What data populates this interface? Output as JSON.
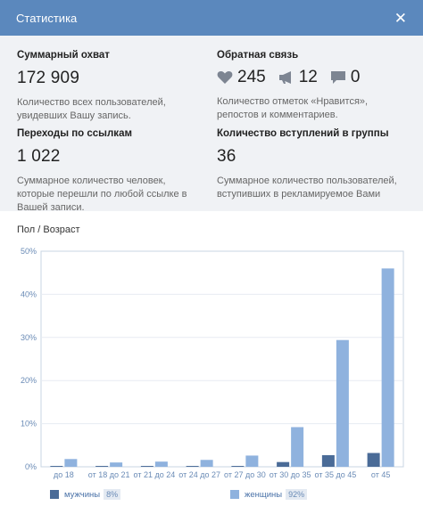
{
  "header": {
    "title": "Статистика",
    "close_symbol": "✕"
  },
  "stats": {
    "reach": {
      "title": "Суммарный охват",
      "value": "172 909",
      "description": "Количество всех пользователей, увидевших Вашу запись."
    },
    "feedback": {
      "title": "Обратная связь",
      "likes": "245",
      "reposts": "12",
      "comments": "0",
      "description": "Количество отметок «Нравится», репостов и комментариев."
    },
    "clicks": {
      "title": "Переходы по ссылкам",
      "value": "1 022",
      "description": "Суммарное количество человек, которые перешли по любой ссылке в Вашей записи."
    },
    "joins": {
      "title": "Количество вступлений в группы",
      "value": "36",
      "description": "Суммарное количество пользователей, вступивших в рекламируемое Вами"
    }
  },
  "chart_section": {
    "title": "Пол / Возраст"
  },
  "chart_data": {
    "type": "bar",
    "categories": [
      "до 18",
      "от 18 до 21",
      "от 21 до 24",
      "от 24 до 27",
      "от 27 до 30",
      "от 30 до 35",
      "от 35 до 45",
      "от 45"
    ],
    "series": [
      {
        "name": "мужчины",
        "share": "8%",
        "color": "#4a6b97",
        "values": [
          0.2,
          0.2,
          0.2,
          0.2,
          0.2,
          1.1,
          2.7,
          3.2
        ]
      },
      {
        "name": "женщины",
        "share": "92%",
        "color": "#8fb2de",
        "values": [
          1.8,
          1.0,
          1.2,
          1.6,
          2.6,
          9.2,
          29.4,
          46.0
        ]
      }
    ],
    "y_ticks": [
      "0%",
      "10%",
      "20%",
      "30%",
      "40%",
      "50%"
    ],
    "ylim": [
      0,
      50
    ],
    "grid": true,
    "legend": "bottom"
  }
}
